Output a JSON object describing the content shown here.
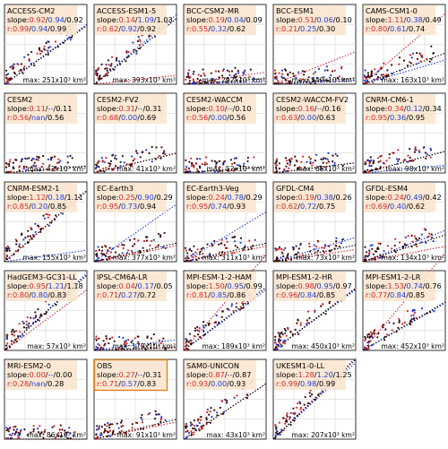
{
  "colors": {
    "red": "#d62728",
    "blue": "#1f3fd8",
    "black": "#000000",
    "label_bg": "#fbe6cf",
    "obs_border": "#e07b1a",
    "grid": "#cccccc"
  },
  "chart_data": [
    {
      "type": "scatter",
      "title": "ACCESS-CM2",
      "slope": [
        "0.92",
        "0.94",
        "0.92"
      ],
      "r": [
        "0.99",
        "0.94",
        "0.99"
      ],
      "max": "max: 251x10³ km²"
    },
    {
      "type": "scatter",
      "title": "ACCESS-ESM1-5",
      "slope": [
        "0.14",
        "1.09",
        "1.03"
      ],
      "r": [
        "0.62",
        "0.92",
        "0.92"
      ],
      "max": "max: 393x10³ km²"
    },
    {
      "type": "scatter",
      "title": "BCC-CSM2-MR",
      "slope": [
        "0.19",
        "0.04",
        "0.09"
      ],
      "r": [
        "0.55",
        "0.32",
        "0.62"
      ],
      "max": "max: 292x10³ km²"
    },
    {
      "type": "scatter",
      "title": "BCC-ESM1",
      "slope": [
        "0.51",
        "0.06",
        "0.10"
      ],
      "r": [
        "0.21",
        "0.25",
        "0.30"
      ],
      "max": "max: 349x10³ km²"
    },
    {
      "type": "scatter",
      "title": "CAMS-CSM1-0",
      "slope": [
        "1.11",
        "0.38",
        "0.49"
      ],
      "r": [
        "0.80",
        "0.61",
        "0.74"
      ],
      "max": "max: 163x10³ km²"
    },
    {
      "type": "scatter",
      "title": "CESM2",
      "slope": [
        "0.11",
        "--",
        "0.11"
      ],
      "r": [
        "0.56",
        "nan",
        "0.56"
      ],
      "max": "max: 42x10³ km²"
    },
    {
      "type": "scatter",
      "title": "CESM2-FV2",
      "slope": [
        "0.31",
        "--",
        "0.31"
      ],
      "r": [
        "0.68",
        "0.00",
        "0.69"
      ],
      "max": "max: 41x10³ km²"
    },
    {
      "type": "scatter",
      "title": "CESM2-WACCM",
      "slope": [
        "0.10",
        "--",
        "0.10"
      ],
      "r": [
        "0.56",
        "0.00",
        "0.56"
      ],
      "max": "max: 52x10³ km²"
    },
    {
      "type": "scatter",
      "title": "CESM2-WACCM-FV2",
      "slope": [
        "0.16",
        "--",
        "0.16"
      ],
      "r": [
        "0.63",
        "0.00",
        "0.63"
      ],
      "max": "max: 65x10³ km²"
    },
    {
      "type": "scatter",
      "title": "CNRM-CM6-1",
      "slope": [
        "0.34",
        "0.12",
        "0.34"
      ],
      "r": [
        "0.95",
        "0.36",
        "0.95"
      ],
      "max": "max: 98x10³ km²"
    },
    {
      "type": "scatter",
      "title": "CNRM-ESM2-1",
      "slope": [
        "1.12",
        "0.18",
        "1.11"
      ],
      "r": [
        "0.85",
        "0.20",
        "0.85"
      ],
      "max": "max: 155x10³ km²"
    },
    {
      "type": "scatter",
      "title": "EC-Earth3",
      "slope": [
        "0.25",
        "0.90",
        "0.29"
      ],
      "r": [
        "0.95",
        "0.73",
        "0.94"
      ],
      "max": "max: 377x10³ km²"
    },
    {
      "type": "scatter",
      "title": "EC-Earth3-Veg",
      "slope": [
        "0.24",
        "0.78",
        "0.29"
      ],
      "r": [
        "0.95",
        "0.74",
        "0.93"
      ],
      "max": "max: 311x10³ km²"
    },
    {
      "type": "scatter",
      "title": "GFDL-CM4",
      "slope": [
        "0.19",
        "0.38",
        "0.26"
      ],
      "r": [
        "0.62",
        "0.72",
        "0.75"
      ],
      "max": "max: 73x10³ km²"
    },
    {
      "type": "scatter",
      "title": "GFDL-ESM4",
      "slope": [
        "0.24",
        "0.49",
        "0.42"
      ],
      "r": [
        "0.69",
        "0.40",
        "0.62"
      ],
      "max": "max: 134x10³ km²"
    },
    {
      "type": "scatter",
      "title": "HadGEM3-GC31-LL",
      "slope": [
        "0.95",
        "1.21",
        "1.18"
      ],
      "r": [
        "0.80",
        "0.80",
        "0.83"
      ],
      "max": "max: 57x10³ km²"
    },
    {
      "type": "scatter",
      "title": "IPSL-CM6A-LR",
      "slope": [
        "0.04",
        "0.17",
        "0.05"
      ],
      "r": [
        "0.71",
        "0.27",
        "0.72"
      ],
      "max": "max: 172x10³ km²"
    },
    {
      "type": "scatter",
      "title": "MPI-ESM-1-2-HAM",
      "slope": [
        "1.50",
        "0.95",
        "0.99"
      ],
      "r": [
        "0.81",
        "0.85",
        "0.86"
      ],
      "max": "max: 189x10³ km²"
    },
    {
      "type": "scatter",
      "title": "MPI-ESM1-2-HR",
      "slope": [
        "0.98",
        "0.95",
        "0.97"
      ],
      "r": [
        "0.96",
        "0.84",
        "0.85"
      ],
      "max": "max: 450x10³ km²"
    },
    {
      "type": "scatter",
      "title": "MPI-ESM1-2-LR",
      "slope": [
        "1.53",
        "0.74",
        "0.76"
      ],
      "r": [
        "0.77",
        "0.84",
        "0.85"
      ],
      "max": "max: 452x10³ km²"
    },
    {
      "type": "scatter",
      "title": "MRI-ESM2-0",
      "slope": [
        "0.00",
        "--",
        "0.00"
      ],
      "r": [
        "0.28",
        "nan",
        "0.28"
      ],
      "max": "max: 86x10³ km²"
    },
    {
      "type": "scatter",
      "title": "OBS",
      "slope": [
        "0.27",
        "--",
        "0.31"
      ],
      "r": [
        "0.71",
        "0.57",
        "0.83"
      ],
      "max": "max: 91x10³ km²",
      "highlight": true
    },
    {
      "type": "scatter",
      "title": "SAM0-UNICON",
      "slope": [
        "0.87",
        "--",
        "0.87"
      ],
      "r": [
        "0.93",
        "0.00",
        "0.93"
      ],
      "max": "max: 43x10³ km²"
    },
    {
      "type": "scatter",
      "title": "UKESM1-0-LL",
      "slope": [
        "1.28",
        "1.20",
        "1.25"
      ],
      "r": [
        "0.99",
        "0.98",
        "0.99"
      ],
      "max": "max: 207x10³ km²"
    }
  ]
}
